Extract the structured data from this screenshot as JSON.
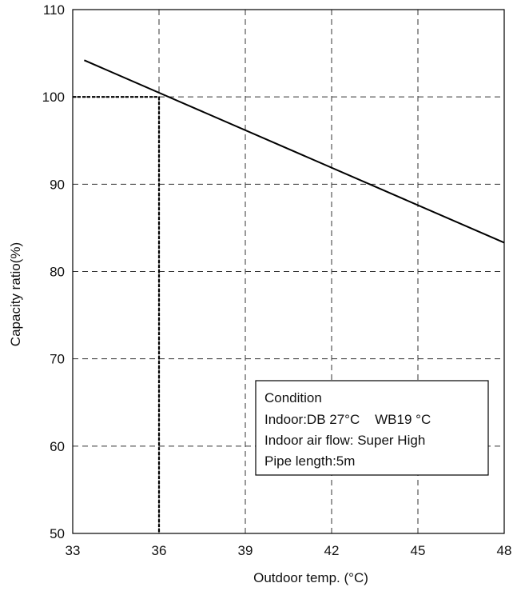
{
  "chart_data": {
    "type": "line",
    "xlabel": "Outdoor temp. (°C)",
    "ylabel": "Capacity ratio(%)",
    "xlim": [
      33,
      48
    ],
    "ylim": [
      50,
      110
    ],
    "x_ticks": [
      33,
      36,
      39,
      42,
      45,
      48
    ],
    "y_ticks": [
      50,
      60,
      70,
      80,
      90,
      100,
      110
    ],
    "grid": true,
    "grid_style": "dashed",
    "series": [
      {
        "x": [
          33.4,
          48
        ],
        "y": [
          104.2,
          83.3
        ],
        "color": "#000000"
      }
    ],
    "reference_point": {
      "x": 36,
      "y": 100
    },
    "annotation": {
      "lines": [
        "Condition",
        "Indoor:DB 27°C    WB19 °C",
        "Indoor air flow: Super High",
        "Pipe length:5m"
      ]
    }
  }
}
